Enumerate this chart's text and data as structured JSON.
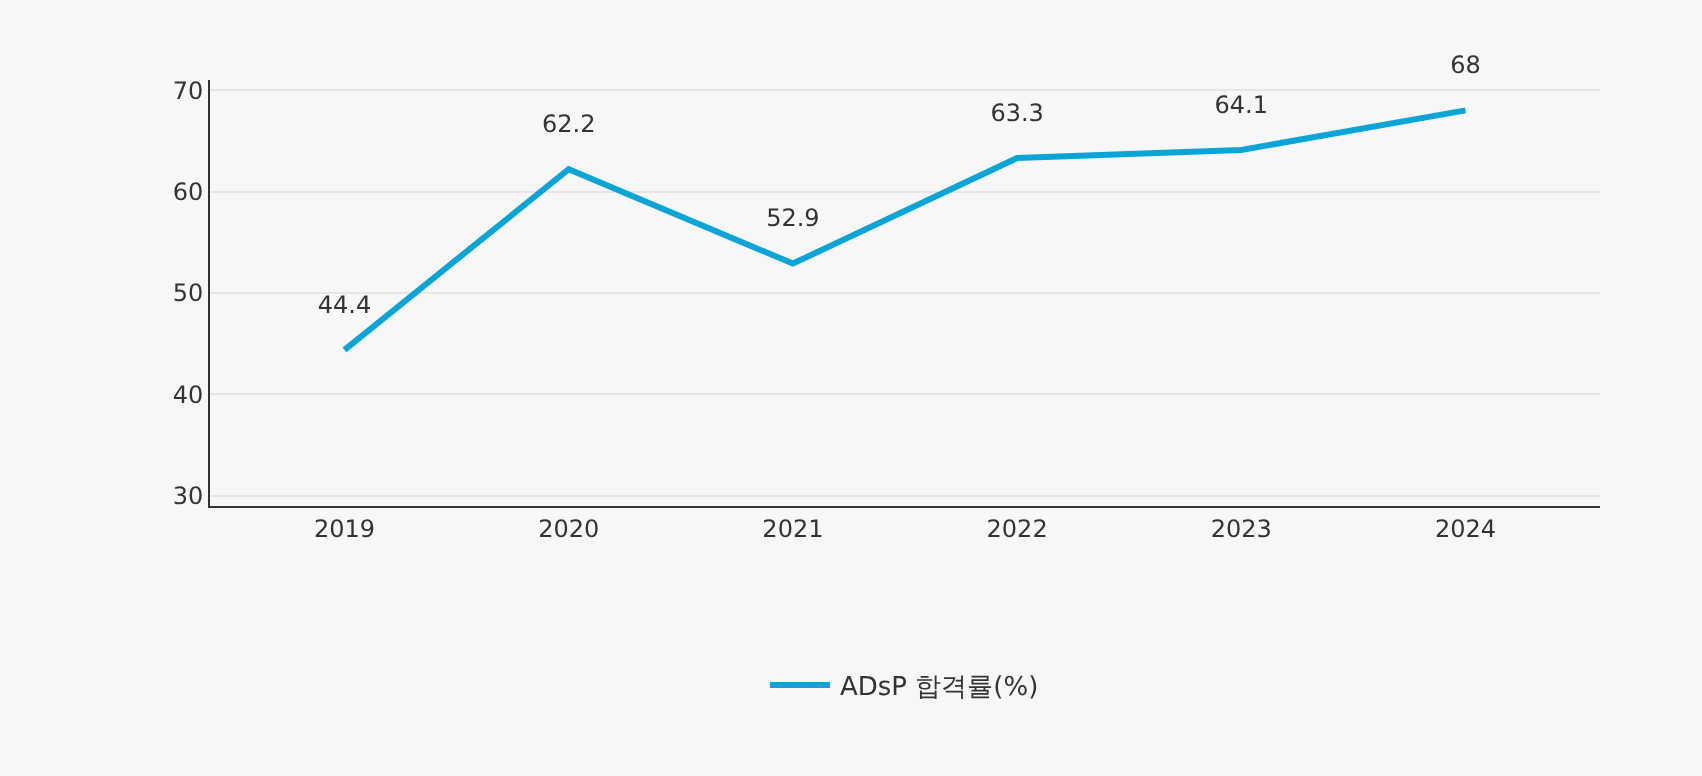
{
  "chart_data": {
    "type": "line",
    "categories": [
      "2019",
      "2020",
      "2021",
      "2022",
      "2023",
      "2024"
    ],
    "series": [
      {
        "name": "ADsP 합격률(%)",
        "color": "#0aa5d6",
        "values": [
          44.4,
          62.2,
          52.9,
          63.3,
          64.1,
          68
        ]
      }
    ],
    "ylim": [
      29,
      71
    ],
    "yticks": [
      30,
      40,
      50,
      60,
      70
    ],
    "grid": "y",
    "legend": "bottom",
    "data_labels": true,
    "marker": "none",
    "line_style": "solid"
  }
}
